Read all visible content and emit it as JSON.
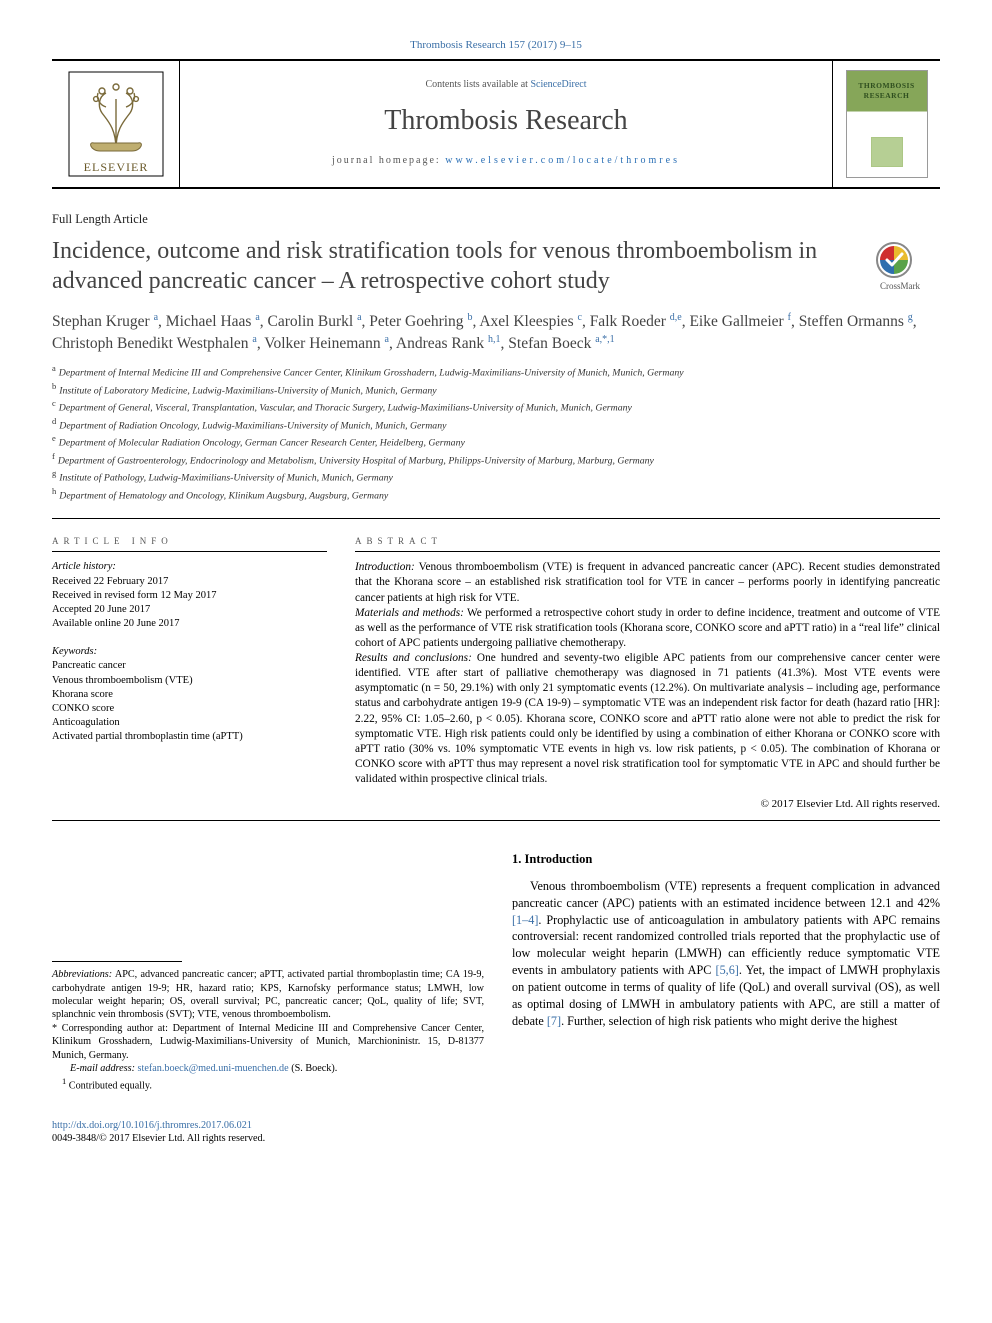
{
  "citation": "Thrombosis Research 157 (2017) 9–15",
  "header": {
    "contents_prefix": "Contents lists available at ",
    "contents_link": "ScienceDirect",
    "journal": "Thrombosis Research",
    "homepage_prefix": "journal homepage: ",
    "homepage_link": "www.elsevier.com/locate/thromres",
    "cover_title": "THROMBOSIS RESEARCH"
  },
  "article_type": "Full Length Article",
  "title": "Incidence, outcome and risk stratification tools for venous thromboembolism in advanced pancreatic cancer – A retrospective cohort study",
  "crossmark_label": "CrossMark",
  "authors_html": "Stephan Kruger <span class='sup'>a</span>, Michael Haas <span class='sup'>a</span>, Carolin Burkl <span class='sup'>a</span>, Peter Goehring <span class='sup'>b</span>, Axel Kleespies <span class='sup'>c</span>, Falk Roeder <span class='sup'>d,e</span>, Eike Gallmeier <span class='sup'>f</span>, Steffen Ormanns <span class='sup'>g</span>, Christoph Benedikt Westphalen <span class='sup'>a</span>, Volker Heinemann <span class='sup'>a</span>, Andreas Rank <span class='sup'>h,1</span>, Stefan Boeck <span class='sup'>a,*,1</span>",
  "affiliations": [
    {
      "key": "a",
      "text": "Department of Internal Medicine III and Comprehensive Cancer Center, Klinikum Grosshadern, Ludwig-Maximilians-University of Munich, Munich, Germany"
    },
    {
      "key": "b",
      "text": "Institute of Laboratory Medicine, Ludwig-Maximilians-University of Munich, Munich, Germany"
    },
    {
      "key": "c",
      "text": "Department of General, Visceral, Transplantation, Vascular, and Thoracic Surgery, Ludwig-Maximilians-University of Munich, Munich, Germany"
    },
    {
      "key": "d",
      "text": "Department of Radiation Oncology, Ludwig-Maximilians-University of Munich, Munich, Germany"
    },
    {
      "key": "e",
      "text": "Department of Molecular Radiation Oncology, German Cancer Research Center, Heidelberg, Germany"
    },
    {
      "key": "f",
      "text": "Department of Gastroenterology, Endocrinology and Metabolism, University Hospital of Marburg, Philipps-University of Marburg, Marburg, Germany"
    },
    {
      "key": "g",
      "text": "Institute of Pathology, Ludwig-Maximilians-University of Munich, Munich, Germany"
    },
    {
      "key": "h",
      "text": "Department of Hematology and Oncology, Klinikum Augsburg, Augsburg, Germany"
    }
  ],
  "info_heading": "article info",
  "abstract_heading": "abstract",
  "history": {
    "label": "Article history:",
    "lines": [
      "Received 22 February 2017",
      "Received in revised form 12 May 2017",
      "Accepted 20 June 2017",
      "Available online 20 June 2017"
    ]
  },
  "keywords": {
    "label": "Keywords:",
    "items": [
      "Pancreatic cancer",
      "Venous thromboembolism (VTE)",
      "Khorana score",
      "CONKO score",
      "Anticoagulation",
      "Activated partial thromboplastin time (aPTT)"
    ]
  },
  "abstract": {
    "intro_label": "Introduction:",
    "intro": " Venous thromboembolism (VTE) is frequent in advanced pancreatic cancer (APC). Recent studies demonstrated that the Khorana score – an established risk stratification tool for VTE in cancer – performs poorly in identifying pancreatic cancer patients at high risk for VTE.",
    "mm_label": "Materials and methods:",
    "mm": " We performed a retrospective cohort study in order to define incidence, treatment and outcome of VTE as well as the performance of VTE risk stratification tools (Khorana score, CONKO score and aPTT ratio) in a “real life” clinical cohort of APC patients undergoing palliative chemotherapy.",
    "rc_label": "Results and conclusions:",
    "rc": " One hundred and seventy-two eligible APC patients from our comprehensive cancer center were identified. VTE after start of palliative chemotherapy was diagnosed in 71 patients (41.3%). Most VTE events were asymptomatic (n = 50, 29.1%) with only 21 symptomatic events (12.2%). On multivariate analysis – including age, performance status and carbohydrate antigen 19-9 (CA 19-9) – symptomatic VTE was an independent risk factor for death (hazard ratio [HR]: 2.22, 95% CI: 1.05–2.60, p < 0.05). Khorana score, CONKO score and aPTT ratio alone were not able to predict the risk for symptomatic VTE. High risk patients could only be identified by using a combination of either Khorana or CONKO score with aPTT ratio (30% vs. 10% symptomatic VTE events in high vs. low risk patients, p < 0.05). The combination of Khorana or CONKO score with aPTT thus may represent a novel risk stratification tool for symptomatic VTE in APC and should further be validated within prospective clinical trials."
  },
  "copyright": "© 2017 Elsevier Ltd. All rights reserved.",
  "section1": {
    "heading": "1. Introduction",
    "body_html": "Venous thromboembolism (VTE) represents a frequent complication in advanced pancreatic cancer (APC) patients with an estimated incidence between 12.1 and 42% <span class='ref'>[1–4]</span>. Prophylactic use of anticoagulation in ambulatory patients with APC remains controversial: recent randomized controlled trials reported that the prophylactic use of low molecular weight heparin (LMWH) can efficiently reduce symptomatic VTE events in ambulatory patients with APC <span class='ref'>[5,6]</span>. Yet, the impact of LMWH prophylaxis on patient outcome in terms of quality of life (QoL) and overall survival (OS), as well as optimal dosing of LMWH in ambulatory patients with APC, are still a matter of debate <span class='ref'>[7]</span>. Further, selection of high risk patients who might derive the highest"
  },
  "footnotes": {
    "abbrev_label": "Abbreviations:",
    "abbrev": " APC, advanced pancreatic cancer; aPTT, activated partial thromboplastin time; CA 19-9, carbohydrate antigen 19-9; HR, hazard ratio; KPS, Karnofsky performance status; LMWH, low molecular weight heparin; OS, overall survival; PC, pancreatic cancer; QoL, quality of life; SVT, splanchnic vein thrombosis (SVT); VTE, venous thromboembolism.",
    "corr_mark": "*",
    "corr": " Corresponding author at: Department of Internal Medicine III and Comprehensive Cancer Center, Klinikum Grosshadern, Ludwig-Maximilians-University of Munich, Marchioninistr. 15, D-81377 Munich, Germany.",
    "email_label": "E-mail address:",
    "email": "stefan.boeck@med.uni-muenchen.de",
    "email_suffix": " (S. Boeck).",
    "contrib_mark": "1",
    "contrib": " Contributed equally."
  },
  "footer": {
    "doi": "http://dx.doi.org/10.1016/j.thromres.2017.06.021",
    "issn": "0049-3848/© 2017 Elsevier Ltd. All rights reserved."
  },
  "colors": {
    "link": "#3a6fa7",
    "heading_gray": "#444444",
    "body_text": "#000000",
    "rule": "#000000",
    "elsevier_orange": "#f39200",
    "cover_green": "#86a659",
    "crossmark_red": "#cf2f2f",
    "crossmark_yellow": "#e9bb2d",
    "crossmark_blue": "#2f6fae",
    "crossmark_green": "#5aa24a"
  },
  "typography": {
    "title_pt": 24,
    "authors_pt": 15.5,
    "journal_pt": 28,
    "body_pt": 12.2,
    "abstract_pt": 11.3,
    "affil_pt": 9.8,
    "footnote_pt": 10.2
  }
}
